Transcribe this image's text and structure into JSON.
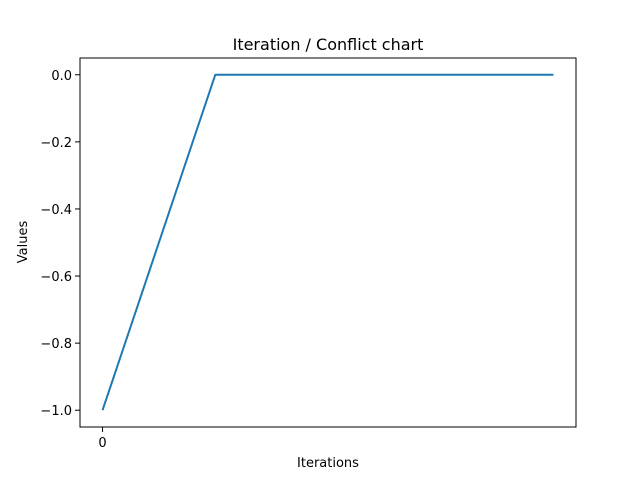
{
  "chart_data": {
    "type": "line",
    "title": "Iteration / Conflict chart",
    "xlabel": "Iterations",
    "ylabel": "Values",
    "xlim": [
      -0.2,
      4.2
    ],
    "ylim": [
      -1.05,
      0.05
    ],
    "grid": false,
    "x_ticks": [
      {
        "value": 0,
        "label": "0"
      }
    ],
    "y_ticks": [
      {
        "value": 0.0,
        "label": "0.0"
      },
      {
        "value": -0.2,
        "label": "−0.2"
      },
      {
        "value": -0.4,
        "label": "−0.4"
      },
      {
        "value": -0.6,
        "label": "−0.6"
      },
      {
        "value": -0.8,
        "label": "−0.8"
      },
      {
        "value": -1.0,
        "label": "−1.0"
      }
    ],
    "series": [
      {
        "color": "#1f77b4",
        "x": [
          0,
          1,
          2,
          3,
          4
        ],
        "y": [
          -1.0,
          0.0,
          0.0,
          0.0,
          0.0
        ]
      }
    ]
  }
}
